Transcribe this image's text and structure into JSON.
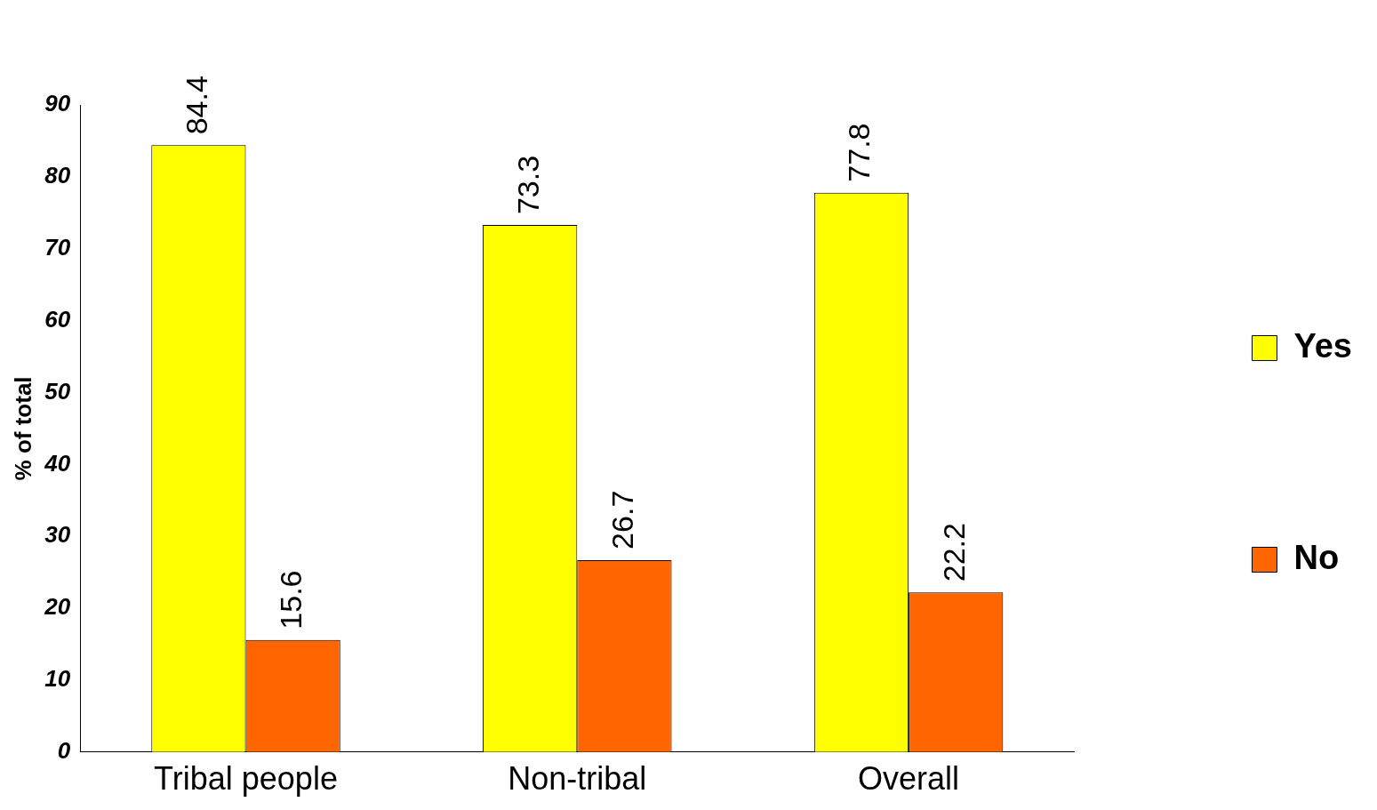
{
  "chart_data": {
    "type": "bar",
    "ylabel": "% of total",
    "categories": [
      "Tribal people",
      "Non-tribal",
      "Overall"
    ],
    "series": [
      {
        "name": "Yes",
        "color": "#ffff00",
        "values": [
          84.4,
          73.3,
          77.8
        ]
      },
      {
        "name": "No",
        "color": "#ff6600",
        "values": [
          15.6,
          26.7,
          22.2
        ]
      }
    ],
    "ylim": [
      0,
      90
    ],
    "yticks": [
      0,
      10,
      20,
      30,
      40,
      50,
      60,
      70,
      80,
      90
    ],
    "grid": false,
    "legend": "right",
    "data_labels": true
  }
}
